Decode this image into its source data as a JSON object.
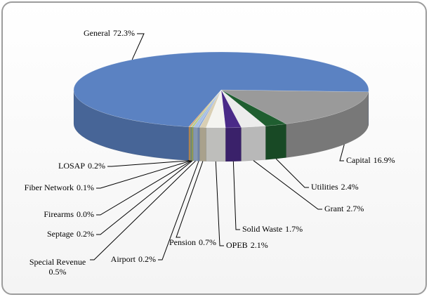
{
  "chart_data": {
    "type": "pie3d",
    "categories": [
      "Capital",
      "Utilities",
      "Grant",
      "Solid Waste",
      "OPEB",
      "Pension",
      "Airport",
      "Special Revenue",
      "Septage",
      "Firearms",
      "Fiber Network",
      "LOSAP",
      "General"
    ],
    "values": [
      16.9,
      2.4,
      2.7,
      1.7,
      2.1,
      0.7,
      0.2,
      0.5,
      0.2,
      0.0,
      0.1,
      0.2,
      72.3
    ],
    "value_labels": [
      "16.9%",
      "2.4%",
      "2.7%",
      "1.7%",
      "2.1%",
      "0.7%",
      "0.2%",
      "0.5%",
      "0.2%",
      "0.0%",
      "0.1%",
      "0.2%",
      "72.3%"
    ],
    "colors": [
      "#9a9a9a",
      "#1f5e30",
      "#ececec",
      "#4a2a88",
      "#f4f4f0",
      "#d9cfb4",
      "#8aa6d6",
      "#a8c0e4",
      "#b7c46c",
      "#c8a8d8",
      "#86c4c4",
      "#e0a866",
      "#5b82c2"
    ]
  }
}
